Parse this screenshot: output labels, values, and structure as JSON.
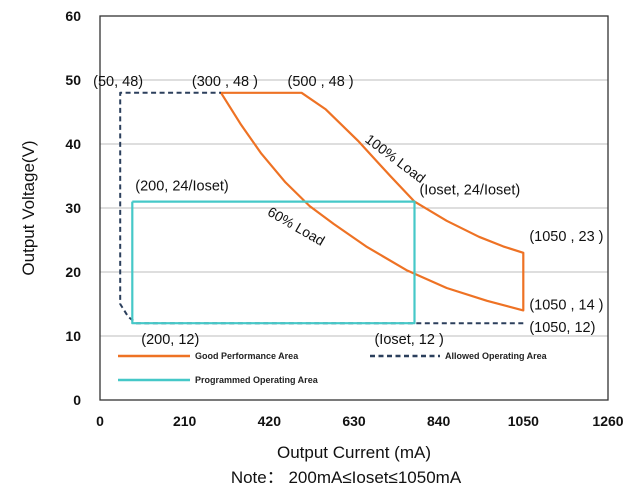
{
  "chart_data": {
    "type": "line",
    "xlabel": "Output Current (mA)",
    "ylabel": "Output Voltage(V)",
    "xlim": [
      0,
      1260
    ],
    "ylim": [
      0,
      60
    ],
    "x_ticks": [
      "0",
      "210",
      "420",
      "630",
      "840",
      "1050",
      "1260"
    ],
    "y_ticks": [
      "0",
      "10",
      "20",
      "30",
      "40",
      "50",
      "60"
    ],
    "grid": "horizontal",
    "legend_position": "bottom-inside",
    "note": "Note： 200mA≤Ioset≤1050mA",
    "series": [
      {
        "name": "Good Performance Area",
        "color": "#ee7224",
        "style": "solid",
        "points": [
          [
            300,
            48
          ],
          [
            500,
            48
          ],
          [
            560,
            45.4
          ],
          [
            640,
            40.5
          ],
          [
            720,
            35
          ],
          [
            780,
            31
          ],
          [
            860,
            28
          ],
          [
            940,
            25.5
          ],
          [
            1000,
            24
          ],
          [
            1050,
            23
          ],
          [
            1050,
            14
          ],
          [
            960,
            15.5
          ],
          [
            860,
            17.5
          ],
          [
            760,
            20.3
          ],
          [
            660,
            24
          ],
          [
            580,
            27.5
          ],
          [
            520,
            30.3
          ],
          [
            460,
            34
          ],
          [
            400,
            38.5
          ],
          [
            350,
            43
          ],
          [
            300,
            48
          ]
        ]
      },
      {
        "name": "Allowed Operating Area",
        "color": "#2b3f5c",
        "style": "dashed",
        "points": [
          [
            1050,
            12
          ],
          [
            90,
            12
          ],
          [
            70,
            13
          ],
          [
            60,
            14
          ],
          [
            50,
            15
          ],
          [
            50,
            48
          ],
          [
            300,
            48
          ]
        ]
      },
      {
        "name": "Programmed Operating Area",
        "color": "#45c8c8",
        "style": "solid",
        "points": [
          [
            80,
            31
          ],
          [
            780,
            31
          ],
          [
            780,
            12
          ],
          [
            80,
            12
          ],
          [
            80,
            31
          ]
        ]
      }
    ],
    "curve_labels": [
      {
        "text": "100% Load",
        "x": 780,
        "y": 34
      },
      {
        "text": "60% Load",
        "x": 580,
        "y": 24
      }
    ],
    "annotations": [
      {
        "text": "(50, 48)",
        "x": 50,
        "y": 48
      },
      {
        "text": "(300 , 48 )",
        "x": 300,
        "y": 48
      },
      {
        "text": "(500 , 48 )",
        "x": 500,
        "y": 48
      },
      {
        "text": "(200, 24/Ioset)",
        "x": 80,
        "y": 31
      },
      {
        "text": "(Ioset, 24/Ioset)",
        "x": 780,
        "y": 31
      },
      {
        "text": "(1050 , 23 )",
        "x": 1050,
        "y": 23
      },
      {
        "text": "(1050 , 14 )",
        "x": 1050,
        "y": 14
      },
      {
        "text": "(1050, 12)",
        "x": 1050,
        "y": 12
      },
      {
        "text": "(200, 12)",
        "x": 80,
        "y": 12
      },
      {
        "text": "(Ioset, 12 )",
        "x": 780,
        "y": 12
      }
    ]
  }
}
